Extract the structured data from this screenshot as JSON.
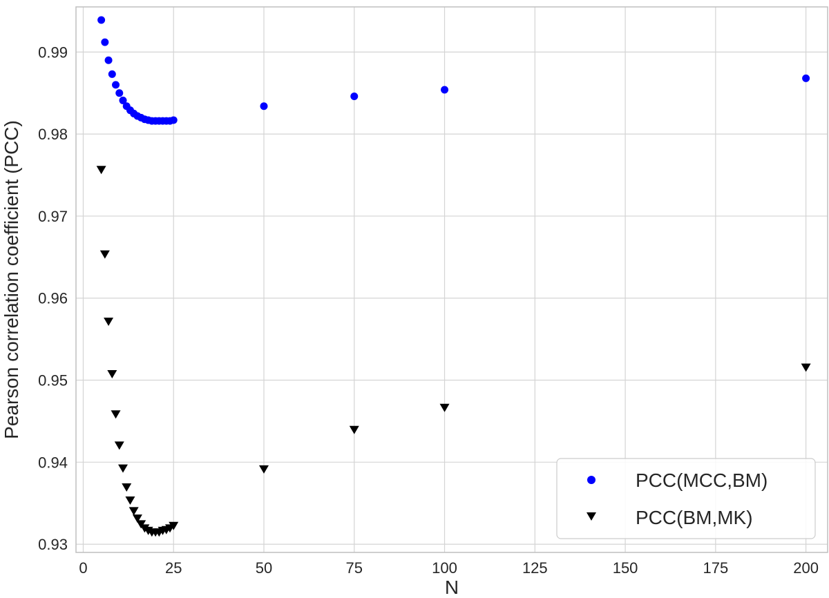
{
  "chart_data": {
    "type": "scatter",
    "xlabel": "N",
    "ylabel": "Pearson correlation coefficient (PCC)",
    "xlim": [
      -2,
      206
    ],
    "ylim": [
      0.929,
      0.9955
    ],
    "x_ticks": [
      0,
      25,
      50,
      75,
      100,
      125,
      150,
      175,
      200
    ],
    "y_ticks": [
      0.93,
      0.94,
      0.95,
      0.96,
      0.97,
      0.98,
      0.99
    ],
    "y_tick_labels": [
      "0.93",
      "0.94",
      "0.95",
      "0.96",
      "0.97",
      "0.98",
      "0.99"
    ],
    "grid": true,
    "legend_position": "bottom-right",
    "series": [
      {
        "name": "PCC(MCC,BM)",
        "marker": "circle",
        "color": "#0000ff",
        "x": [
          5,
          6,
          7,
          8,
          9,
          10,
          11,
          12,
          13,
          14,
          15,
          16,
          17,
          18,
          19,
          20,
          21,
          22,
          23,
          24,
          25,
          50,
          75,
          100,
          200
        ],
        "y": [
          0.9939,
          0.9912,
          0.989,
          0.9873,
          0.986,
          0.985,
          0.9841,
          0.9834,
          0.9829,
          0.9825,
          0.9822,
          0.982,
          0.9818,
          0.9817,
          0.9816,
          0.9816,
          0.9816,
          0.9816,
          0.9816,
          0.9816,
          0.9817,
          0.9834,
          0.9846,
          0.9854,
          0.9868
        ]
      },
      {
        "name": "PCC(BM,MK)",
        "marker": "triangle-down",
        "color": "#000000",
        "x": [
          5,
          6,
          7,
          8,
          9,
          10,
          11,
          12,
          13,
          14,
          15,
          16,
          17,
          18,
          19,
          20,
          21,
          22,
          23,
          24,
          25,
          50,
          75,
          100,
          200
        ],
        "y": [
          0.9757,
          0.9654,
          0.9572,
          0.9508,
          0.9459,
          0.9421,
          0.9393,
          0.937,
          0.9354,
          0.9341,
          0.9332,
          0.9325,
          0.932,
          0.9317,
          0.9315,
          0.9315,
          0.9315,
          0.9317,
          0.9318,
          0.932,
          0.9323,
          0.9392,
          0.944,
          0.9467,
          0.9516
        ]
      }
    ]
  }
}
